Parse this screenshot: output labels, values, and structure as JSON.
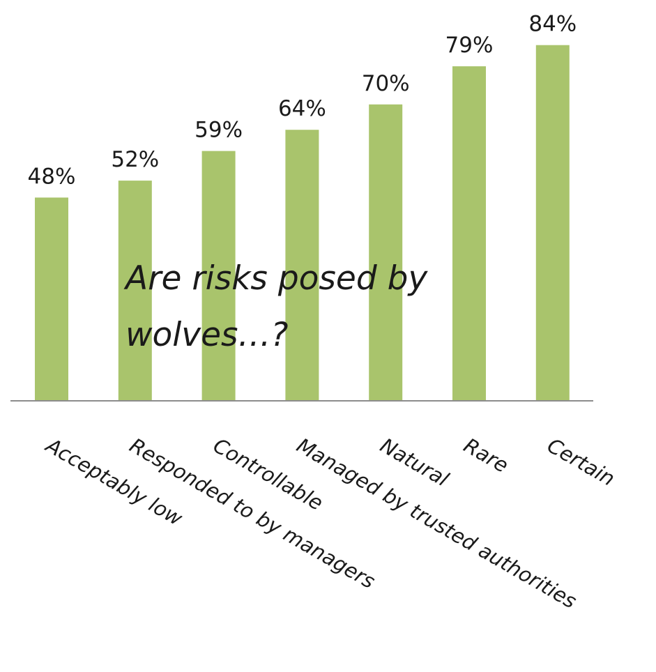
{
  "chart_data": {
    "type": "bar",
    "title": "Are risks posed by wolves…?",
    "title_lines": [
      "Are risks posed by",
      "wolves…?"
    ],
    "categories": [
      "Acceptably low",
      "Responded to by managers",
      "Controllable",
      "Managed by trusted authorities",
      "Natural",
      "Rare",
      "Certain"
    ],
    "values": [
      48,
      52,
      59,
      64,
      70,
      79,
      84
    ],
    "data_labels": [
      "48%",
      "52%",
      "59%",
      "64%",
      "70%",
      "79%",
      "84%"
    ],
    "unit": "%",
    "bar_color": "#a9c46c",
    "axis_color": "#8c8c8c",
    "ylim": [
      0,
      100
    ],
    "grid": false,
    "legend": "none",
    "xlabel": "",
    "ylabel": ""
  }
}
